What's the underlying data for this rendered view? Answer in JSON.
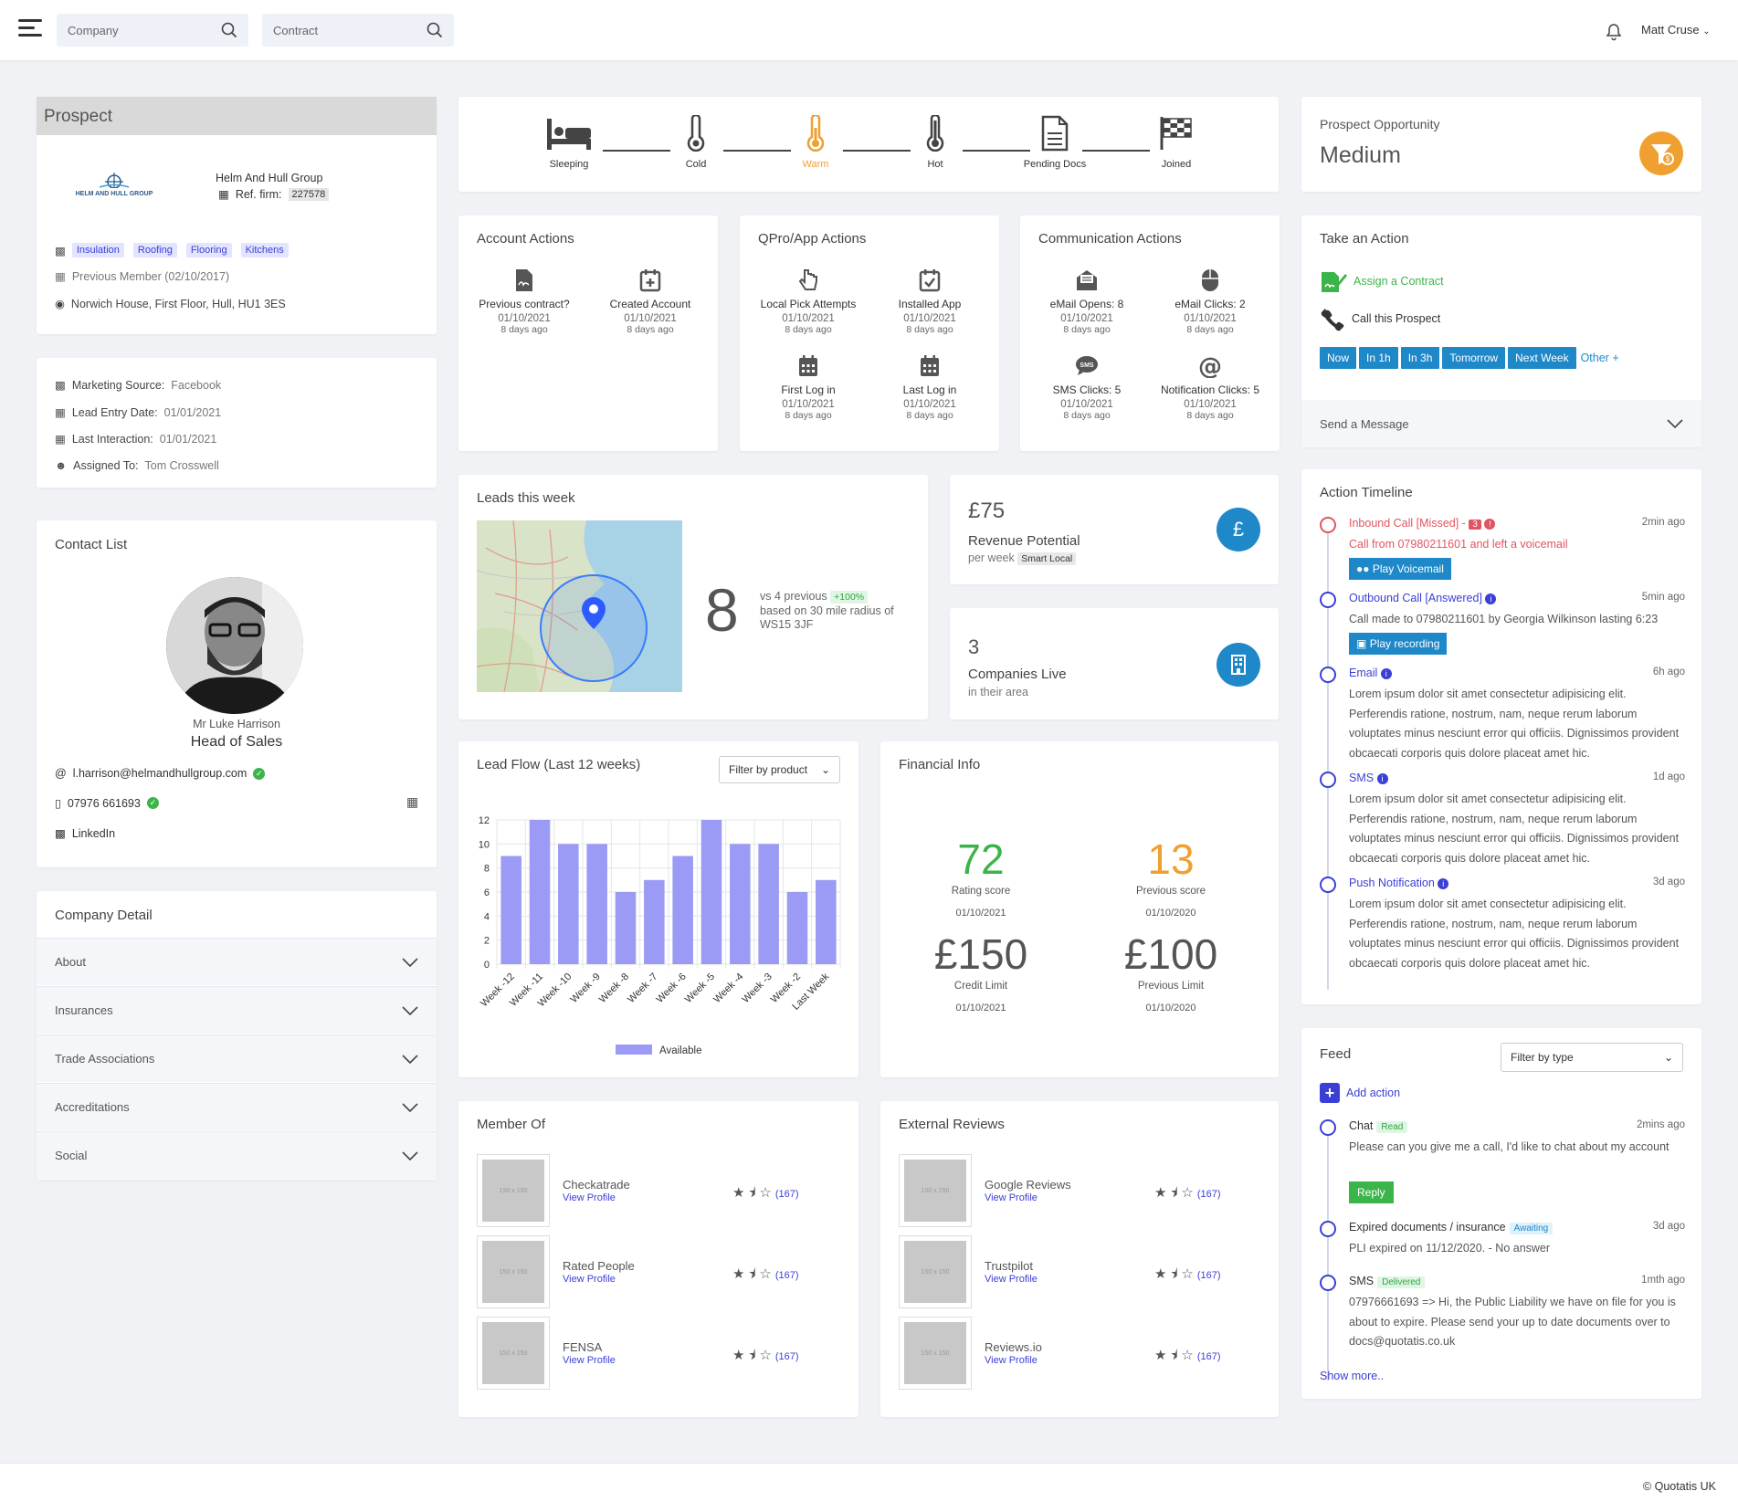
{
  "topbar": {
    "search_company": "Company",
    "search_contract": "Contract",
    "user": "Matt Cruse"
  },
  "prospect": {
    "header": "Prospect",
    "company": "Helm And Hull Group",
    "logo_text": "HELM AND HULL GROUP",
    "ref_label": "Ref. firm:",
    "ref": "227578",
    "tags": [
      "Insulation",
      "Roofing",
      "Flooring",
      "Kitchens"
    ],
    "previous_member": "Previous Member (02/10/2017)",
    "address": "Norwich House, First Floor, Hull, HU1 3ES"
  },
  "marketing": {
    "source_label": "Marketing Source:",
    "source": "Facebook",
    "lead_label": "Lead Entry Date:",
    "lead": "01/01/2021",
    "last_label": "Last Interaction:",
    "last": "01/01/2021",
    "assigned_label": "Assigned To:",
    "assigned": "Tom Crosswell"
  },
  "contact": {
    "title": "Contact List",
    "name": "Mr Luke Harrison",
    "role": "Head of Sales",
    "email": "l.harrison@helmandhullgroup.com",
    "phone": "07976 661693",
    "linkedin": "LinkedIn"
  },
  "company_detail": {
    "title": "Company Detail",
    "sections": [
      "About",
      "Insurances",
      "Trade Associations",
      "Accreditations",
      "Social"
    ]
  },
  "stages": {
    "items": [
      "Sleeping",
      "Cold",
      "Warm",
      "Hot",
      "Pending Docs",
      "Joined"
    ],
    "active": "Warm",
    "active_color": "#f0a030"
  },
  "opportunity": {
    "title": "Prospect Opportunity",
    "value": "Medium",
    "accent": "#f0a030"
  },
  "account_actions": {
    "title": "Account Actions",
    "items": [
      {
        "label": "Previous contract?",
        "date": "01/10/2021",
        "ago": "8 days ago"
      },
      {
        "label": "Created Account",
        "date": "01/10/2021",
        "ago": "8 days ago"
      }
    ]
  },
  "qpro_actions": {
    "title": "QPro/App Actions",
    "items": [
      {
        "label": "Local Pick Attempts",
        "date": "01/10/2021",
        "ago": "8 days ago"
      },
      {
        "label": "Installed App",
        "date": "01/10/2021",
        "ago": "8 days ago"
      },
      {
        "label": "First Log in",
        "date": "01/10/2021",
        "ago": "8 days ago"
      },
      {
        "label": "Last Log in",
        "date": "01/10/2021",
        "ago": "8 days ago"
      }
    ]
  },
  "comm_actions": {
    "title": "Communication Actions",
    "items": [
      {
        "label": "eMail Opens: 8",
        "date": "01/10/2021",
        "ago": "8 days ago"
      },
      {
        "label": "eMail Clicks: 2",
        "date": "01/10/2021",
        "ago": "8 days ago"
      },
      {
        "label": "SMS Clicks: 5",
        "date": "01/10/2021",
        "ago": "8 days ago"
      },
      {
        "label": "Notification Clicks: 5",
        "date": "01/10/2021",
        "ago": "8 days ago"
      }
    ]
  },
  "take_action": {
    "title": "Take an Action",
    "assign": "Assign a Contract",
    "call": "Call this Prospect",
    "buttons": [
      "Now",
      "In 1h",
      "In 3h",
      "Tomorrow",
      "Next Week"
    ],
    "other": "Other +",
    "send": "Send a Message"
  },
  "leads": {
    "title": "Leads this week",
    "count": "8",
    "vs": "vs 4 previous",
    "change": "+100%",
    "radius": "based on 30 mile radius of WS15 3JF"
  },
  "revenue": {
    "value": "£75",
    "label": "Revenue Potential",
    "sub": "per week",
    "tag": "Smart Local",
    "icon_color": "#1e88c9"
  },
  "companies": {
    "value": "3",
    "label": "Companies Live",
    "sub": "in their area"
  },
  "timeline": {
    "title": "Action Timeline",
    "items": [
      {
        "head": "Inbound Call [Missed] -",
        "badge": "3",
        "when": "2min ago",
        "body": "Call from 07980211601 and left a voicemail",
        "button": "Play Voicemail"
      },
      {
        "head": "Outbound Call [Answered]",
        "when": "5min ago",
        "body": "Call made to 07980211601 by Georgia Wilkinson lasting 6:23",
        "button": "Play recording"
      },
      {
        "head": "Email",
        "when": "6h ago",
        "body": "Lorem ipsum dolor sit amet consectetur adipisicing elit. Perferendis ratione, nostrum, nam, neque rerum laborum voluptates minus nesciunt error qui officiis. Dignissimos provident obcaecati corporis quis dolore placeat amet hic."
      },
      {
        "head": "SMS",
        "when": "1d ago",
        "body": "Lorem ipsum dolor sit amet consectetur adipisicing elit. Perferendis ratione, nostrum, nam, neque rerum laborum voluptates minus nesciunt error qui officiis. Dignissimos provident obcaecati corporis quis dolore placeat amet hic."
      },
      {
        "head": "Push Notification",
        "when": "3d ago",
        "body": "Lorem ipsum dolor sit amet consectetur adipisicing elit. Perferendis ratione, nostrum, nam, neque rerum laborum voluptates minus nesciunt error qui officiis. Dignissimos provident obcaecati corporis quis dolore placeat amet hic."
      }
    ]
  },
  "leadflow": {
    "title": "Lead Flow (Last 12 weeks)",
    "filter": "Filter by product"
  },
  "financial": {
    "title": "Financial Info",
    "rating": "72",
    "rating_label": "Rating score",
    "rating_date": "01/10/2021",
    "previous": "13",
    "previous_label": "Previous score",
    "previous_date": "01/10/2020",
    "credit": "£150",
    "credit_label": "Credit Limit",
    "credit_date": "01/10/2021",
    "prev_limit": "£100",
    "prev_limit_label": "Previous Limit",
    "prev_limit_date": "01/10/2020"
  },
  "feed": {
    "title": "Feed",
    "filter": "Filter by type",
    "add": "Add action",
    "items": [
      {
        "head": "Chat",
        "label": "Read",
        "when": "2mins ago",
        "body": "Please can you give me a call, I'd like to chat about my account",
        "button": "Reply"
      },
      {
        "head": "Expired documents / insurance",
        "label": "Awaiting",
        "when": "3d ago",
        "body": "PLI expired on 11/12/2020. - No answer"
      },
      {
        "head": "SMS",
        "label": "Delivered",
        "when": "1mth ago",
        "body": "07976661693 => Hi, the Public Liability we have on file for you is about to expire. Please send your up to date documents over to docs@quotatis.co.uk"
      }
    ],
    "more": "Show more.."
  },
  "member_of": {
    "title": "Member Of",
    "items": [
      {
        "name": "Checkatrade",
        "link": "View Profile",
        "count": "(167)"
      },
      {
        "name": "Rated People",
        "link": "View Profile",
        "count": "(167)"
      },
      {
        "name": "FENSA",
        "link": "View Profile",
        "count": "(167)"
      }
    ],
    "thumb_text": "150 x 150"
  },
  "reviews": {
    "title": "External Reviews",
    "items": [
      {
        "name": "Google Reviews",
        "link": "View Profile",
        "count": "(167)"
      },
      {
        "name": "Trustpilot",
        "link": "View Profile",
        "count": "(167)"
      },
      {
        "name": "Reviews.io",
        "link": "View Profile",
        "count": "(167)"
      }
    ]
  },
  "footer": {
    "copy": "© Quotatis UK"
  },
  "chart_data": {
    "type": "bar",
    "title": "Lead Flow (Last 12 weeks)",
    "categories": [
      "Week -12",
      "Week -11",
      "Week -10",
      "Week -9",
      "Week -8",
      "Week -7",
      "Week -6",
      "Week -5",
      "Week -4",
      "Week -3",
      "Week -2",
      "Last Week"
    ],
    "series": [
      {
        "name": "Available",
        "values": [
          9,
          12,
          10,
          10,
          6,
          7,
          9,
          12,
          10,
          10,
          6,
          7
        ]
      }
    ],
    "ylim": [
      0,
      12
    ],
    "yticks": [
      0,
      2,
      4,
      6,
      8,
      10,
      12
    ],
    "color": "#9b9bf5",
    "legend": "bottom"
  }
}
